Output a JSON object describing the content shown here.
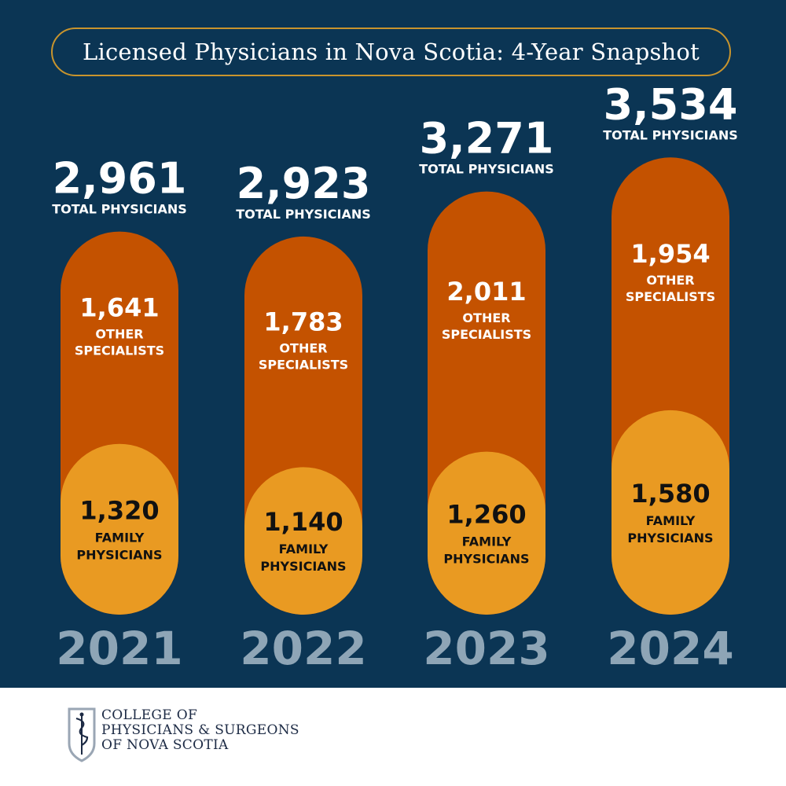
{
  "title": "Licensed Physicians in Nova Scotia: 4-Year Snapshot",
  "chart_data": {
    "type": "bar",
    "stacked": true,
    "title": "Licensed Physicians in Nova Scotia: 4-Year Snapshot",
    "categories": [
      "2021",
      "2022",
      "2023",
      "2024"
    ],
    "series": [
      {
        "name": "FAMILY PHYSICIANS",
        "label_lines": [
          "FAMILY",
          "PHYSICIANS"
        ],
        "values": [
          1320,
          1140,
          1260,
          1580
        ],
        "display": [
          "1,320",
          "1,140",
          "1,260",
          "1,580"
        ],
        "color": "#e99a22"
      },
      {
        "name": "OTHER SPECIALISTS",
        "label_lines": [
          "OTHER",
          "SPECIALISTS"
        ],
        "values": [
          1641,
          1783,
          2011,
          1954
        ],
        "display": [
          "1,641",
          "1,783",
          "2,011",
          "1,954"
        ],
        "color": "#c45200"
      }
    ],
    "totals": [
      2961,
      2923,
      3271,
      3534
    ],
    "totals_display": [
      "2,961",
      "2,923",
      "3,271",
      "3,534"
    ],
    "total_label": "TOTAL PHYSICIANS",
    "year_color": "#8ea5b6",
    "background_color": "#0b3554",
    "accent_color": "#c8942d"
  },
  "footer": {
    "org_name_lines": [
      "COLLEGE OF",
      "PHYSICIANS & SURGEONS",
      "OF NOVA SCOTIA"
    ]
  }
}
